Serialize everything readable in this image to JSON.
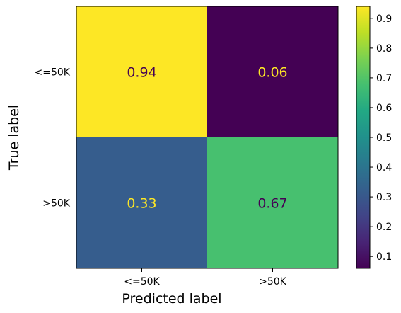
{
  "chart_data": {
    "type": "heatmap",
    "title": "",
    "xlabel": "Predicted label",
    "ylabel": "True label",
    "x_categories": [
      "<=50K",
      ">50K"
    ],
    "y_categories": [
      "<=50K",
      ">50K"
    ],
    "values": [
      [
        0.94,
        0.06
      ],
      [
        0.33,
        0.67
      ]
    ],
    "value_labels": [
      [
        "0.94",
        "0.06"
      ],
      [
        "0.33",
        "0.67"
      ]
    ],
    "colormap": "viridis",
    "colorbar": {
      "range": [
        0.06,
        0.94
      ],
      "ticks": [
        0.1,
        0.2,
        0.3,
        0.4,
        0.5,
        0.6,
        0.7,
        0.8,
        0.9
      ],
      "tick_labels": [
        "0.1",
        "0.2",
        "0.3",
        "0.4",
        "0.5",
        "0.6",
        "0.7",
        "0.8",
        "0.9"
      ]
    },
    "cell_colors": [
      [
        "#fde725",
        "#440154"
      ],
      [
        "#365d8d",
        "#47c06f"
      ]
    ],
    "cell_text_colors": [
      [
        "#440154",
        "#fde725"
      ],
      [
        "#fde725",
        "#440154"
      ]
    ],
    "grid": false
  }
}
